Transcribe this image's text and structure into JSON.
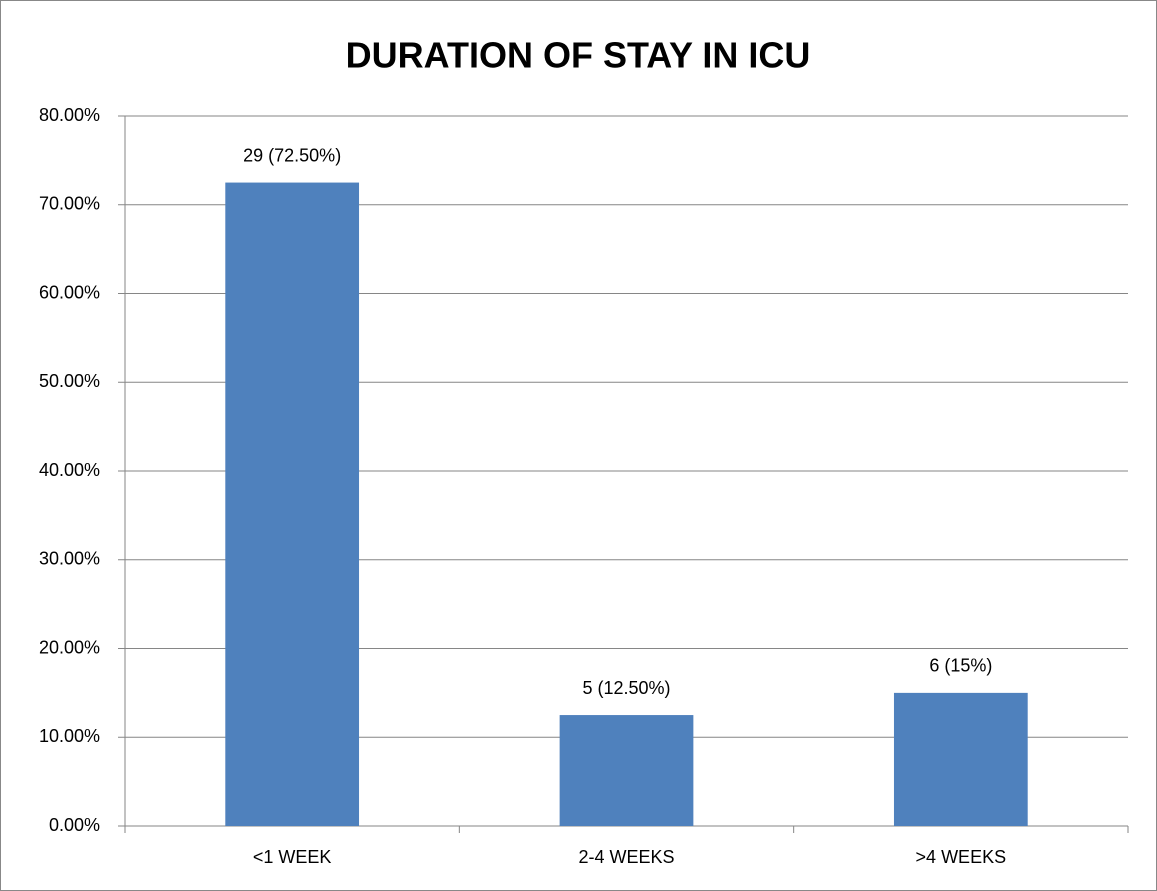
{
  "chart_data": {
    "type": "bar",
    "title": "DURATION OF STAY IN ICU",
    "categories": [
      "<1 WEEK",
      "2-4 WEEKS",
      ">4 WEEKS"
    ],
    "values": [
      72.5,
      12.5,
      15
    ],
    "value_labels": [
      "29 (72.50%)",
      "5 (12.50%)",
      "6 (15%)"
    ],
    "color": "#4f81bd",
    "ylim": [
      0,
      80
    ],
    "yticks": [
      {
        "value": 0,
        "label": "0.00%"
      },
      {
        "value": 10,
        "label": "10.00%"
      },
      {
        "value": 20,
        "label": "20.00%"
      },
      {
        "value": 30,
        "label": "30.00%"
      },
      {
        "value": 40,
        "label": "40.00%"
      },
      {
        "value": 50,
        "label": "50.00%"
      },
      {
        "value": 60,
        "label": "60.00%"
      },
      {
        "value": 70,
        "label": "70.00%"
      },
      {
        "value": 80,
        "label": "80.00%"
      }
    ],
    "grid": true
  }
}
